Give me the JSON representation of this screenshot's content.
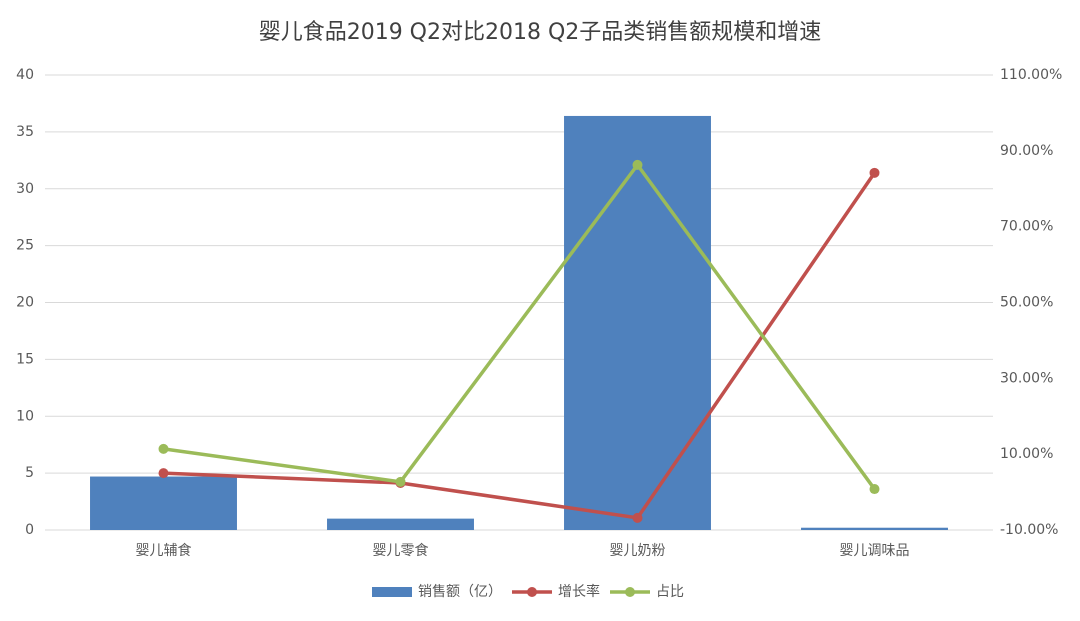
{
  "chart_data": {
    "type": "bar-line",
    "title": "婴儿食品2019 Q2对比2018 Q2子品类销售额规模和增速",
    "categories": [
      "婴儿辅食",
      "婴儿零食",
      "婴儿奶粉",
      "婴儿调味品"
    ],
    "series": [
      {
        "name": "销售额（亿）",
        "type": "bar",
        "color": "#4f81bd",
        "values": [
          4.7,
          1.0,
          36.4,
          0.2
        ]
      },
      {
        "name": "增长率",
        "type": "line",
        "axis": "y2",
        "color": "#c0504d",
        "values": [
          5.0,
          2.4,
          -6.8,
          84.2
        ]
      },
      {
        "name": "占比",
        "type": "line",
        "axis": "y2",
        "color": "#9bbb59",
        "values": [
          11.4,
          2.7,
          86.3,
          0.8
        ]
      }
    ],
    "ylim": [
      0,
      40
    ],
    "yticks": [
      0,
      5,
      10,
      15,
      20,
      25,
      30,
      35,
      40
    ],
    "y2lim": [
      -10,
      110
    ],
    "y2ticks": [
      {
        "value": -10,
        "label": "-10.00%"
      },
      {
        "value": 10,
        "label": "10.00%"
      },
      {
        "value": 30,
        "label": "30.00%"
      },
      {
        "value": 50,
        "label": "50.00%"
      },
      {
        "value": 70,
        "label": "70.00%"
      },
      {
        "value": 90,
        "label": "90.00%"
      },
      {
        "value": 110,
        "label": "110.00%"
      }
    ],
    "grid": true,
    "legend": "bottom"
  }
}
